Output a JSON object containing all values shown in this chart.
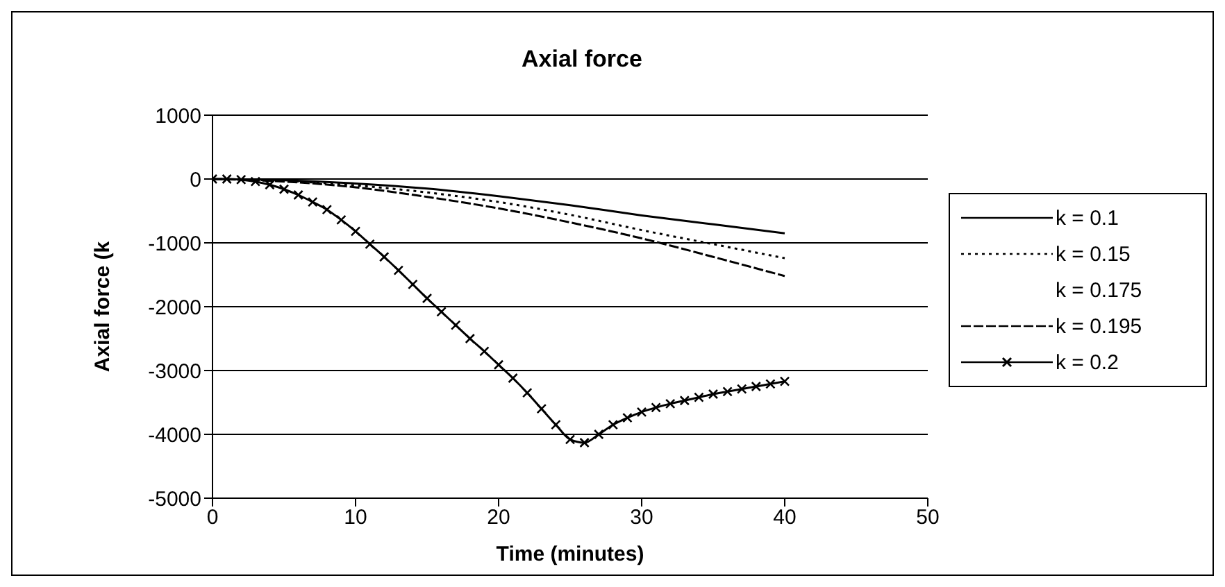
{
  "chart_data": {
    "type": "line",
    "title": "Axial force",
    "xlabel": "Time (minutes)",
    "ylabel": "Axial force (k",
    "xlim": [
      0,
      50
    ],
    "xticks": [
      0,
      10,
      20,
      30,
      40,
      50
    ],
    "ylim": [
      -5000,
      1000
    ],
    "yticks": [
      -5000,
      -4000,
      -3000,
      -2000,
      -1000,
      0,
      1000
    ],
    "grid": "y",
    "legend": "right",
    "series": [
      {
        "name": "k = 0.1",
        "color": "#000000",
        "line_style": "solid",
        "marker": "none",
        "x": [
          0,
          5,
          10,
          15,
          20,
          25,
          30,
          35,
          40
        ],
        "values": [
          0,
          -20,
          -70,
          -150,
          -270,
          -410,
          -570,
          -710,
          -850
        ]
      },
      {
        "name": "k = 0.15",
        "color": "#000000",
        "line_style": "dotted",
        "marker": "none",
        "x": [
          0,
          5,
          10,
          15,
          20,
          25,
          30,
          35,
          40
        ],
        "values": [
          0,
          -30,
          -100,
          -210,
          -360,
          -560,
          -800,
          -1020,
          -1240
        ]
      },
      {
        "name": "k = 0.175"
      },
      {
        "name": "k = 0.195",
        "color": "#000000",
        "line_style": "dashed",
        "marker": "none",
        "x": [
          0,
          5,
          10,
          15,
          20,
          25,
          30,
          35,
          40
        ],
        "values": [
          0,
          -40,
          -130,
          -280,
          -460,
          -680,
          -930,
          -1220,
          -1520
        ]
      },
      {
        "name": "k = 0.2",
        "color": "#000000",
        "line_style": "solid",
        "marker": "cross",
        "x": [
          0,
          1,
          2,
          3,
          4,
          5,
          6,
          7,
          8,
          9,
          10,
          11,
          12,
          13,
          14,
          15,
          16,
          17,
          18,
          19,
          20,
          21,
          22,
          23,
          24,
          25,
          26,
          27,
          28,
          29,
          30,
          31,
          32,
          33,
          34,
          35,
          36,
          37,
          38,
          39,
          40
        ],
        "values": [
          0,
          0,
          -10,
          -40,
          -90,
          -160,
          -250,
          -360,
          -480,
          -640,
          -820,
          -1020,
          -1220,
          -1430,
          -1650,
          -1870,
          -2080,
          -2290,
          -2500,
          -2700,
          -2910,
          -3120,
          -3350,
          -3600,
          -3850,
          -4080,
          -4130,
          -4000,
          -3850,
          -3740,
          -3650,
          -3580,
          -3520,
          -3470,
          -3420,
          -3370,
          -3330,
          -3290,
          -3250,
          -3210,
          -3170
        ]
      }
    ]
  }
}
